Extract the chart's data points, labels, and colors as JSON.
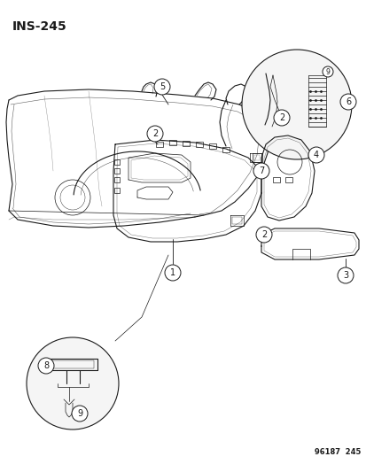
{
  "title": "INS−245",
  "footer": "96187  245",
  "bg": "#ffffff",
  "lc": "#1a1a1a",
  "figsize": [
    4.14,
    5.33
  ],
  "dpi": 100,
  "xlim": [
    0,
    414
  ],
  "ylim": [
    0,
    533
  ]
}
